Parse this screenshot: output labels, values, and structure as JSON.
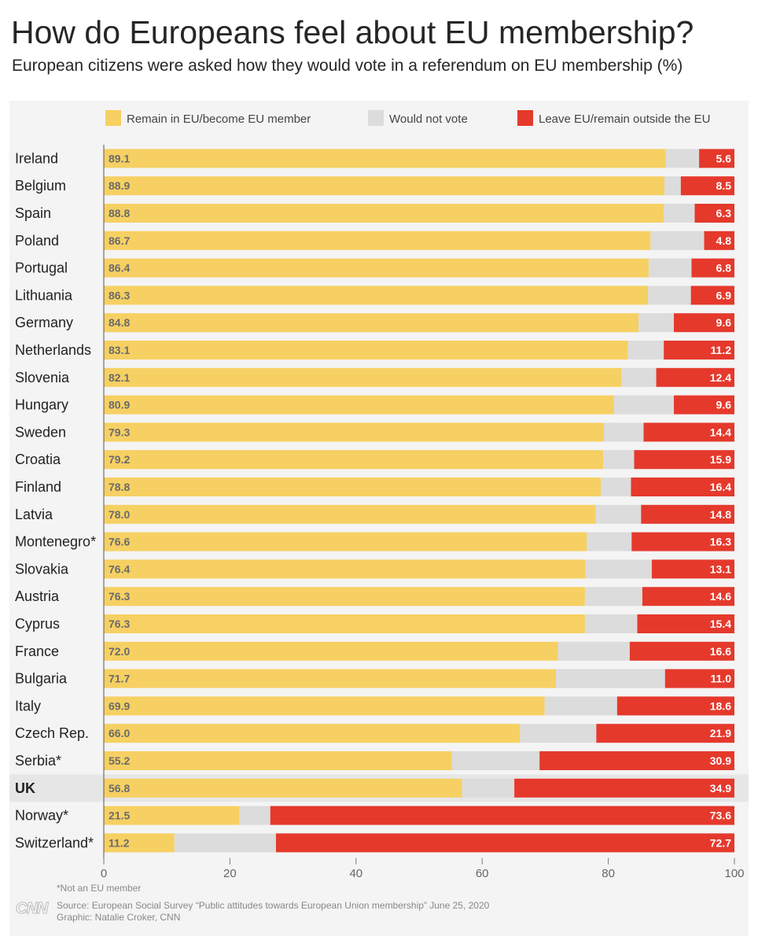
{
  "title": "How do Europeans feel about EU membership?",
  "subtitle": "European citizens were asked how they would vote in a referendum on EU membership (%)",
  "footnote": "*Not an EU member",
  "source": "Source: European Social Survey “Public attitudes towards European Union membership” June 25, 2020",
  "credit": "Graphic: Natalie Croker, CNN",
  "logo_text": "CNN",
  "colors": {
    "remain": "#f6d062",
    "novote": "#dcdcdc",
    "leave": "#e5392c",
    "highlight_row": "#e6e6e6"
  },
  "chart_data": {
    "type": "bar",
    "orientation": "horizontal",
    "stacked": true,
    "title": "How do Europeans feel about EU membership?",
    "subtitle": "European citizens were asked how they would vote in a referendum on EU membership (%)",
    "xlim": [
      0,
      100
    ],
    "xticks": [
      0,
      20,
      40,
      60,
      80,
      100
    ],
    "legend": [
      {
        "key": "remain",
        "label": "Remain in EU/become EU member"
      },
      {
        "key": "novote",
        "label": "Would not vote"
      },
      {
        "key": "leave",
        "label": "Leave EU/remain outside the EU"
      }
    ],
    "legend_position": "top",
    "highlight": "UK",
    "rows": [
      {
        "country": "Ireland",
        "remain": 89.1,
        "leave": 5.6
      },
      {
        "country": "Belgium",
        "remain": 88.9,
        "leave": 8.5
      },
      {
        "country": "Spain",
        "remain": 88.8,
        "leave": 6.3
      },
      {
        "country": "Poland",
        "remain": 86.7,
        "leave": 4.8
      },
      {
        "country": "Portugal",
        "remain": 86.4,
        "leave": 6.8
      },
      {
        "country": "Lithuania",
        "remain": 86.3,
        "leave": 6.9
      },
      {
        "country": "Germany",
        "remain": 84.8,
        "leave": 9.6
      },
      {
        "country": "Netherlands",
        "remain": 83.1,
        "leave": 11.2
      },
      {
        "country": "Slovenia",
        "remain": 82.1,
        "leave": 12.4
      },
      {
        "country": "Hungary",
        "remain": 80.9,
        "leave": 9.6
      },
      {
        "country": "Sweden",
        "remain": 79.3,
        "leave": 14.4
      },
      {
        "country": "Croatia",
        "remain": 79.2,
        "leave": 15.9
      },
      {
        "country": "Finland",
        "remain": 78.8,
        "leave": 16.4
      },
      {
        "country": "Latvia",
        "remain": 78.0,
        "leave": 14.8
      },
      {
        "country": "Montenegro*",
        "remain": 76.6,
        "leave": 16.3
      },
      {
        "country": "Slovakia",
        "remain": 76.4,
        "leave": 13.1
      },
      {
        "country": "Austria",
        "remain": 76.3,
        "leave": 14.6
      },
      {
        "country": "Cyprus",
        "remain": 76.3,
        "leave": 15.4
      },
      {
        "country": "France",
        "remain": 72.0,
        "leave": 16.6
      },
      {
        "country": "Bulgaria",
        "remain": 71.7,
        "leave": 11.0
      },
      {
        "country": "Italy",
        "remain": 69.9,
        "leave": 18.6
      },
      {
        "country": "Czech Rep.",
        "remain": 66.0,
        "leave": 21.9
      },
      {
        "country": "Serbia*",
        "remain": 55.2,
        "leave": 30.9
      },
      {
        "country": "UK",
        "remain": 56.8,
        "leave": 34.9
      },
      {
        "country": "Norway*",
        "remain": 21.5,
        "leave": 73.6
      },
      {
        "country": "Switzerland*",
        "remain": 11.2,
        "leave": 72.7
      }
    ]
  }
}
